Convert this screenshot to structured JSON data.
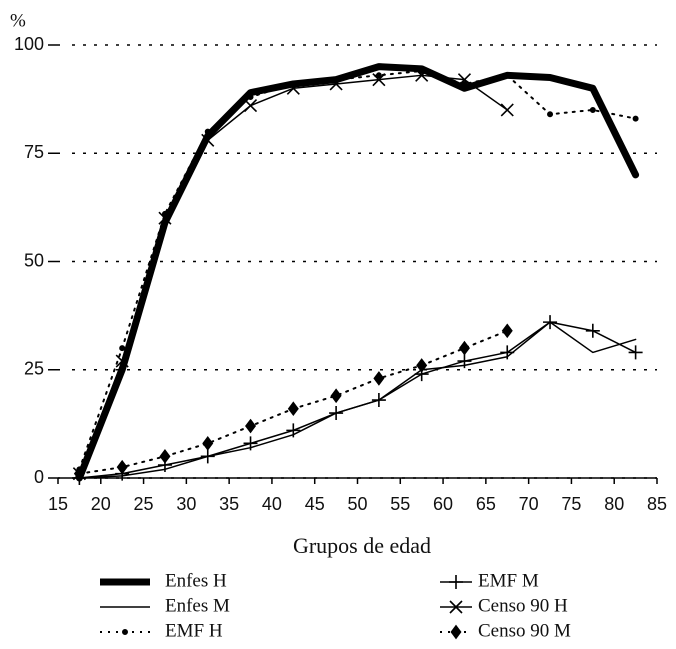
{
  "chart_data": {
    "type": "line",
    "y_label": "%",
    "x_label": "Grupos de edad",
    "x": [
      17.5,
      22.5,
      27.5,
      32.5,
      37.5,
      42.5,
      47.5,
      52.5,
      57.5,
      62.5,
      67.5,
      72.5,
      77.5,
      82.5
    ],
    "xlim": [
      15,
      85
    ],
    "xticks": [
      15,
      20,
      25,
      30,
      35,
      40,
      45,
      50,
      55,
      60,
      65,
      70,
      75,
      80,
      85
    ],
    "ylim": [
      0,
      100
    ],
    "yticks": [
      0,
      25,
      50,
      75,
      100
    ],
    "grid": true,
    "series": [
      {
        "name": "Enfes H",
        "color": "#000000",
        "width": 7,
        "dash": "solid",
        "marker": "none",
        "values": [
          0,
          25,
          59,
          79,
          89,
          91,
          92,
          95,
          94.5,
          90,
          93,
          92.5,
          90,
          70
        ]
      },
      {
        "name": "Enfes M",
        "color": "#000000",
        "width": 1.5,
        "dash": "solid",
        "marker": "none",
        "values": [
          0,
          0.5,
          2,
          5,
          7,
          10,
          15,
          18,
          25,
          26,
          28,
          36,
          29,
          32
        ]
      },
      {
        "name": "EMF H",
        "color": "#000000",
        "width": 2,
        "dash": "dotted",
        "marker": "dot",
        "values": [
          2,
          30,
          61,
          80,
          88,
          91,
          92,
          93,
          94,
          91,
          93,
          84,
          85,
          83
        ]
      },
      {
        "name": "EMF M",
        "color": "#000000",
        "width": 1.5,
        "dash": "solid",
        "marker": "plus",
        "values": [
          0,
          1,
          3,
          5,
          8,
          11,
          15,
          18,
          24,
          27,
          29,
          36,
          34,
          29
        ]
      },
      {
        "name": "Censo 90 H",
        "color": "#000000",
        "width": 1.5,
        "dash": "solid",
        "marker": "x",
        "values": [
          1,
          27,
          60,
          78,
          86,
          90,
          91,
          92,
          93,
          92,
          85,
          null,
          null,
          null
        ]
      },
      {
        "name": "Censo 90 M",
        "color": "#000000",
        "width": 2,
        "dash": "dotted",
        "marker": "diamond",
        "values": [
          1,
          2.5,
          5,
          8,
          12,
          16,
          19,
          23,
          26,
          30,
          34,
          null,
          null,
          null
        ]
      }
    ]
  }
}
